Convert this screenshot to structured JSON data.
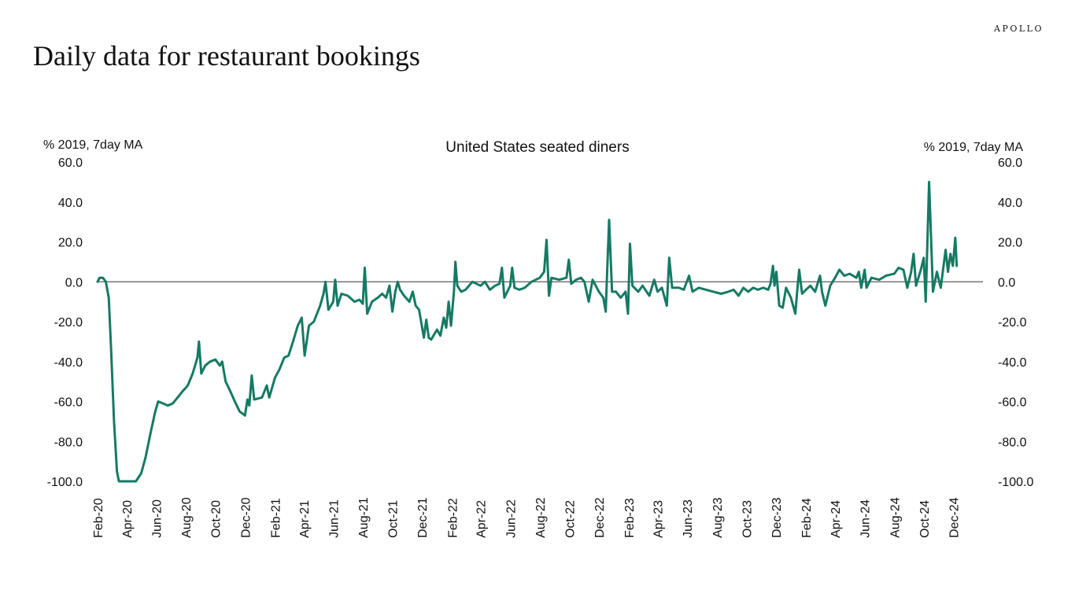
{
  "brand": "APOLLO",
  "title": "Daily data for restaurant bookings",
  "colors": {
    "line": "#157A63",
    "axis": "#333333",
    "text": "#111111"
  },
  "chart_data": {
    "type": "line",
    "title": "United States seated diners",
    "ylabel_left": "% 2019, 7day MA",
    "ylabel_right": "% 2019, 7day MA",
    "ylim": [
      -100,
      60
    ],
    "yticks": [
      60,
      40,
      20,
      0,
      -20,
      -40,
      -60,
      -80,
      -100
    ],
    "ytick_labels": [
      "60.0",
      "40.0",
      "20.0",
      "0.0",
      "-20.0",
      "-40.0",
      "-60.0",
      "-80.0",
      "-100.0"
    ],
    "xlim": [
      "2020-02-01",
      "2025-01-31"
    ],
    "xticks": [
      "2020-02-01",
      "2020-04-01",
      "2020-06-01",
      "2020-08-01",
      "2020-10-01",
      "2020-12-01",
      "2021-02-01",
      "2021-04-01",
      "2021-06-01",
      "2021-08-01",
      "2021-10-01",
      "2021-12-01",
      "2022-02-01",
      "2022-04-01",
      "2022-06-01",
      "2022-08-01",
      "2022-10-01",
      "2022-12-01",
      "2023-02-01",
      "2023-04-01",
      "2023-06-01",
      "2023-08-01",
      "2023-10-01",
      "2023-12-01",
      "2024-02-01",
      "2024-04-01",
      "2024-06-01",
      "2024-08-01",
      "2024-10-01",
      "2024-12-01"
    ],
    "xtick_labels": [
      "Feb-20",
      "Apr-20",
      "Jun-20",
      "Aug-20",
      "Oct-20",
      "Dec-20",
      "Feb-21",
      "Apr-21",
      "Jun-21",
      "Aug-21",
      "Oct-21",
      "Dec-21",
      "Feb-22",
      "Apr-22",
      "Jun-22",
      "Aug-22",
      "Oct-22",
      "Dec-22",
      "Feb-23",
      "Apr-23",
      "Jun-23",
      "Aug-23",
      "Oct-23",
      "Dec-23",
      "Feb-24",
      "Apr-24",
      "Jun-24",
      "Aug-24",
      "Oct-24",
      "Dec-24"
    ],
    "legend": "none",
    "grid": false,
    "series": [
      {
        "color": "#157A63",
        "points": [
          [
            "2020-02-01",
            0
          ],
          [
            "2020-02-05",
            2
          ],
          [
            "2020-02-12",
            2
          ],
          [
            "2020-02-18",
            0
          ],
          [
            "2020-02-24",
            -8
          ],
          [
            "2020-02-29",
            -35
          ],
          [
            "2020-03-06",
            -70
          ],
          [
            "2020-03-12",
            -95
          ],
          [
            "2020-03-16",
            -100
          ],
          [
            "2020-04-01",
            -100
          ],
          [
            "2020-04-20",
            -100
          ],
          [
            "2020-05-01",
            -96
          ],
          [
            "2020-05-10",
            -88
          ],
          [
            "2020-05-20",
            -76
          ],
          [
            "2020-05-30",
            -65
          ],
          [
            "2020-06-05",
            -60
          ],
          [
            "2020-06-15",
            -61
          ],
          [
            "2020-06-25",
            -62
          ],
          [
            "2020-07-05",
            -61
          ],
          [
            "2020-07-15",
            -58
          ],
          [
            "2020-07-25",
            -55
          ],
          [
            "2020-08-05",
            -52
          ],
          [
            "2020-08-15",
            -46
          ],
          [
            "2020-08-25",
            -38
          ],
          [
            "2020-08-28",
            -30
          ],
          [
            "2020-09-02",
            -46
          ],
          [
            "2020-09-10",
            -42
          ],
          [
            "2020-09-20",
            -40
          ],
          [
            "2020-10-01",
            -39
          ],
          [
            "2020-10-10",
            -42
          ],
          [
            "2020-10-15",
            -40
          ],
          [
            "2020-10-22",
            -50
          ],
          [
            "2020-11-01",
            -55
          ],
          [
            "2020-11-10",
            -60
          ],
          [
            "2020-11-20",
            -65
          ],
          [
            "2020-12-01",
            -67
          ],
          [
            "2020-12-06",
            -59
          ],
          [
            "2020-12-10",
            -62
          ],
          [
            "2020-12-15",
            -47
          ],
          [
            "2020-12-20",
            -59
          ],
          [
            "2021-01-05",
            -58
          ],
          [
            "2021-01-15",
            -52
          ],
          [
            "2021-01-20",
            -58
          ],
          [
            "2021-02-01",
            -48
          ],
          [
            "2021-02-10",
            -44
          ],
          [
            "2021-02-20",
            -38
          ],
          [
            "2021-03-01",
            -37
          ],
          [
            "2021-03-10",
            -30
          ],
          [
            "2021-03-20",
            -22
          ],
          [
            "2021-03-28",
            -18
          ],
          [
            "2021-04-03",
            -37
          ],
          [
            "2021-04-12",
            -22
          ],
          [
            "2021-04-22",
            -20
          ],
          [
            "2021-05-05",
            -12
          ],
          [
            "2021-05-12",
            -6
          ],
          [
            "2021-05-16",
            0
          ],
          [
            "2021-05-22",
            -14
          ],
          [
            "2021-06-01",
            -10
          ],
          [
            "2021-06-05",
            1
          ],
          [
            "2021-06-10",
            -12
          ],
          [
            "2021-06-18",
            -6
          ],
          [
            "2021-07-01",
            -7
          ],
          [
            "2021-07-15",
            -10
          ],
          [
            "2021-07-25",
            -9
          ],
          [
            "2021-08-01",
            -11
          ],
          [
            "2021-08-05",
            7
          ],
          [
            "2021-08-10",
            -16
          ],
          [
            "2021-08-20",
            -10
          ],
          [
            "2021-09-01",
            -8
          ],
          [
            "2021-09-10",
            -6
          ],
          [
            "2021-09-18",
            -8
          ],
          [
            "2021-09-25",
            -2
          ],
          [
            "2021-10-01",
            -15
          ],
          [
            "2021-10-07",
            -5
          ],
          [
            "2021-10-12",
            0
          ],
          [
            "2021-10-17",
            -4
          ],
          [
            "2021-10-25",
            -7
          ],
          [
            "2021-11-05",
            -10
          ],
          [
            "2021-11-12",
            -5
          ],
          [
            "2021-11-18",
            -12
          ],
          [
            "2021-11-25",
            -14
          ],
          [
            "2021-12-05",
            -28
          ],
          [
            "2021-12-10",
            -19
          ],
          [
            "2021-12-15",
            -28
          ],
          [
            "2021-12-20",
            -29
          ],
          [
            "2022-01-01",
            -24
          ],
          [
            "2022-01-08",
            -27
          ],
          [
            "2022-01-15",
            -18
          ],
          [
            "2022-01-20",
            -23
          ],
          [
            "2022-01-25",
            -10
          ],
          [
            "2022-01-30",
            -22
          ],
          [
            "2022-02-05",
            -5
          ],
          [
            "2022-02-08",
            10
          ],
          [
            "2022-02-12",
            -2
          ],
          [
            "2022-02-20",
            -5
          ],
          [
            "2022-03-01",
            -4
          ],
          [
            "2022-03-15",
            0
          ],
          [
            "2022-04-01",
            -2
          ],
          [
            "2022-04-10",
            0
          ],
          [
            "2022-04-20",
            -4
          ],
          [
            "2022-05-01",
            -2
          ],
          [
            "2022-05-10",
            -1
          ],
          [
            "2022-05-15",
            7
          ],
          [
            "2022-05-20",
            -8
          ],
          [
            "2022-06-01",
            -2
          ],
          [
            "2022-06-05",
            7
          ],
          [
            "2022-06-10",
            -3
          ],
          [
            "2022-06-20",
            -4
          ],
          [
            "2022-07-01",
            -3
          ],
          [
            "2022-07-15",
            0
          ],
          [
            "2022-08-01",
            2
          ],
          [
            "2022-08-10",
            5
          ],
          [
            "2022-08-15",
            21
          ],
          [
            "2022-08-20",
            -7
          ],
          [
            "2022-08-25",
            2
          ],
          [
            "2022-09-10",
            1
          ],
          [
            "2022-09-25",
            2
          ],
          [
            "2022-09-30",
            11
          ],
          [
            "2022-10-05",
            -1
          ],
          [
            "2022-10-15",
            1
          ],
          [
            "2022-10-25",
            2
          ],
          [
            "2022-11-01",
            0
          ],
          [
            "2022-11-10",
            -10
          ],
          [
            "2022-11-18",
            1
          ],
          [
            "2022-12-01",
            -5
          ],
          [
            "2022-12-10",
            -8
          ],
          [
            "2022-12-15",
            -15
          ],
          [
            "2022-12-18",
            5
          ],
          [
            "2022-12-22",
            31
          ],
          [
            "2022-12-28",
            -5
          ],
          [
            "2023-01-05",
            -5
          ],
          [
            "2023-01-15",
            -8
          ],
          [
            "2023-01-25",
            -5
          ],
          [
            "2023-01-30",
            -16
          ],
          [
            "2023-02-03",
            19
          ],
          [
            "2023-02-08",
            -2
          ],
          [
            "2023-02-20",
            -5
          ],
          [
            "2023-03-01",
            -2
          ],
          [
            "2023-03-15",
            -7
          ],
          [
            "2023-03-25",
            1
          ],
          [
            "2023-04-01",
            -5
          ],
          [
            "2023-04-10",
            -3
          ],
          [
            "2023-04-20",
            -12
          ],
          [
            "2023-04-25",
            12
          ],
          [
            "2023-05-01",
            -3
          ],
          [
            "2023-05-15",
            -3
          ],
          [
            "2023-05-25",
            -4
          ],
          [
            "2023-06-05",
            3
          ],
          [
            "2023-06-12",
            -5
          ],
          [
            "2023-06-25",
            -3
          ],
          [
            "2023-07-10",
            -4
          ],
          [
            "2023-07-25",
            -5
          ],
          [
            "2023-08-10",
            -6
          ],
          [
            "2023-08-25",
            -5
          ],
          [
            "2023-09-05",
            -4
          ],
          [
            "2023-09-15",
            -7
          ],
          [
            "2023-09-25",
            -3
          ],
          [
            "2023-10-05",
            -5
          ],
          [
            "2023-10-15",
            -3
          ],
          [
            "2023-10-25",
            -4
          ],
          [
            "2023-11-05",
            -3
          ],
          [
            "2023-11-15",
            -4
          ],
          [
            "2023-11-20",
            -1
          ],
          [
            "2023-11-25",
            8
          ],
          [
            "2023-11-28",
            -2
          ],
          [
            "2023-12-02",
            5
          ],
          [
            "2023-12-08",
            -12
          ],
          [
            "2023-12-15",
            -13
          ],
          [
            "2023-12-22",
            -3
          ],
          [
            "2024-01-01",
            -8
          ],
          [
            "2024-01-10",
            -16
          ],
          [
            "2024-01-15",
            -2
          ],
          [
            "2024-01-18",
            6
          ],
          [
            "2024-01-24",
            -6
          ],
          [
            "2024-02-01",
            -4
          ],
          [
            "2024-02-10",
            -2
          ],
          [
            "2024-02-20",
            -5
          ],
          [
            "2024-03-01",
            3
          ],
          [
            "2024-03-05",
            -5
          ],
          [
            "2024-03-12",
            -12
          ],
          [
            "2024-03-22",
            -2
          ],
          [
            "2024-04-01",
            2
          ],
          [
            "2024-04-10",
            6
          ],
          [
            "2024-04-20",
            3
          ],
          [
            "2024-05-01",
            4
          ],
          [
            "2024-05-15",
            2
          ],
          [
            "2024-05-20",
            5
          ],
          [
            "2024-05-25",
            -3
          ],
          [
            "2024-06-01",
            6
          ],
          [
            "2024-06-05",
            -3
          ],
          [
            "2024-06-15",
            2
          ],
          [
            "2024-07-01",
            1
          ],
          [
            "2024-07-15",
            3
          ],
          [
            "2024-08-01",
            4
          ],
          [
            "2024-08-10",
            7
          ],
          [
            "2024-08-20",
            6
          ],
          [
            "2024-08-28",
            -3
          ],
          [
            "2024-09-05",
            5
          ],
          [
            "2024-09-10",
            14
          ],
          [
            "2024-09-15",
            -2
          ],
          [
            "2024-09-25",
            6
          ],
          [
            "2024-10-01",
            12
          ],
          [
            "2024-10-05",
            -10
          ],
          [
            "2024-10-12",
            50
          ],
          [
            "2024-10-20",
            -5
          ],
          [
            "2024-10-28",
            5
          ],
          [
            "2024-11-05",
            -3
          ],
          [
            "2024-11-15",
            16
          ],
          [
            "2024-11-20",
            5
          ],
          [
            "2024-11-25",
            14
          ],
          [
            "2024-11-30",
            8
          ],
          [
            "2024-12-05",
            22
          ],
          [
            "2024-12-08",
            8
          ]
        ]
      }
    ]
  }
}
